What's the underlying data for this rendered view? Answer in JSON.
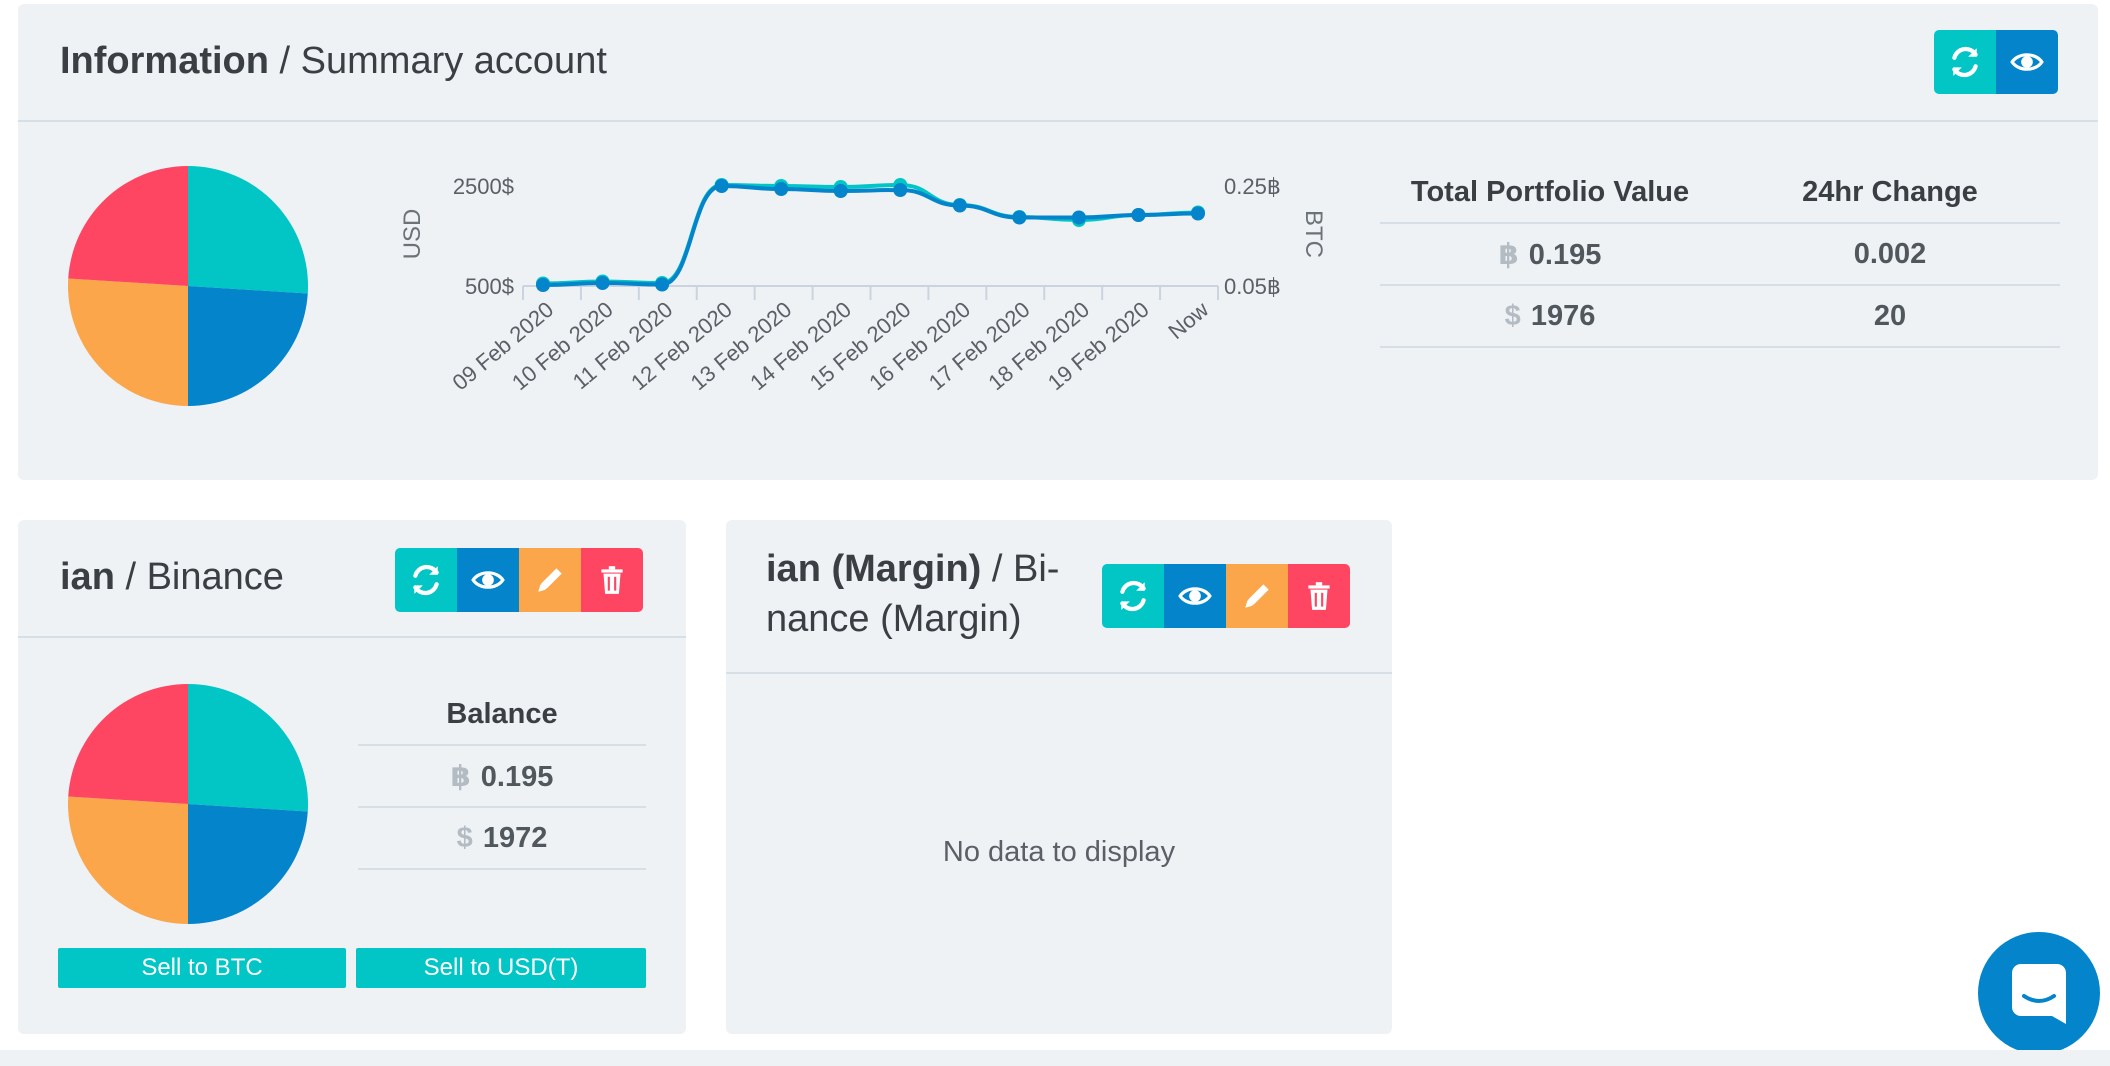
{
  "summary": {
    "title_bold": "Information",
    "title_rest": " / Summary account",
    "table": {
      "headers": [
        "Total Portfolio Value",
        "24hr Change"
      ],
      "rows": [
        {
          "currency": "฿",
          "value": "0.195",
          "change": "0.002"
        },
        {
          "currency": "$",
          "value": "1976",
          "change": "20"
        }
      ]
    }
  },
  "chart_data": {
    "type": "line",
    "title": "",
    "ylabel": "USD",
    "y2label": "BTC",
    "ytick_labels": [
      "2500$",
      "500$"
    ],
    "y2tick_labels": [
      "0.25฿",
      "0.05฿"
    ],
    "categories": [
      "09 Feb 2020",
      "10 Feb 2020",
      "11 Feb 2020",
      "12 Feb 2020",
      "13 Feb 2020",
      "14 Feb 2020",
      "15 Feb 2020",
      "16 Feb 2020",
      "17 Feb 2020",
      "18 Feb 2020",
      "19 Feb 2020",
      "Now"
    ],
    "series": [
      {
        "values": [
          520,
          560,
          530,
          2500,
          2440,
          2400,
          2420,
          2110,
          1870,
          1870,
          1920,
          1950
        ],
        "color": "#0485cb"
      },
      {
        "values": [
          0.055,
          0.059,
          0.056,
          0.252,
          0.25,
          0.248,
          0.252,
          0.212,
          0.188,
          0.182,
          0.192,
          0.197
        ],
        "color": "#02c5c6"
      }
    ],
    "ylim": [
      500,
      2500
    ],
    "y2lim": [
      0.05,
      0.25
    ],
    "grid": false,
    "legend": "none"
  },
  "pie_colors": [
    "#02c5c6",
    "#0485cb",
    "#fca64b",
    "#fe4561"
  ],
  "accounts": [
    {
      "title_bold": "ian",
      "title_rest": " / Binance",
      "balance_header": "Balance",
      "rows": [
        {
          "currency": "฿",
          "value": "0.195"
        },
        {
          "currency": "$",
          "value": "1972"
        }
      ],
      "sell_btc": "Sell to BTC",
      "sell_usd": "Sell to USD(T)"
    },
    {
      "title_bold": "ian (Margin)",
      "title_rest_line1": " / Bi-",
      "title_rest_line2": "nance (Margin)",
      "empty_text": "No data to display"
    }
  ],
  "icons": {
    "refresh": "refresh-icon",
    "view": "eye-icon",
    "edit": "pencil-icon",
    "delete": "trash-icon",
    "chat": "chat-icon"
  }
}
